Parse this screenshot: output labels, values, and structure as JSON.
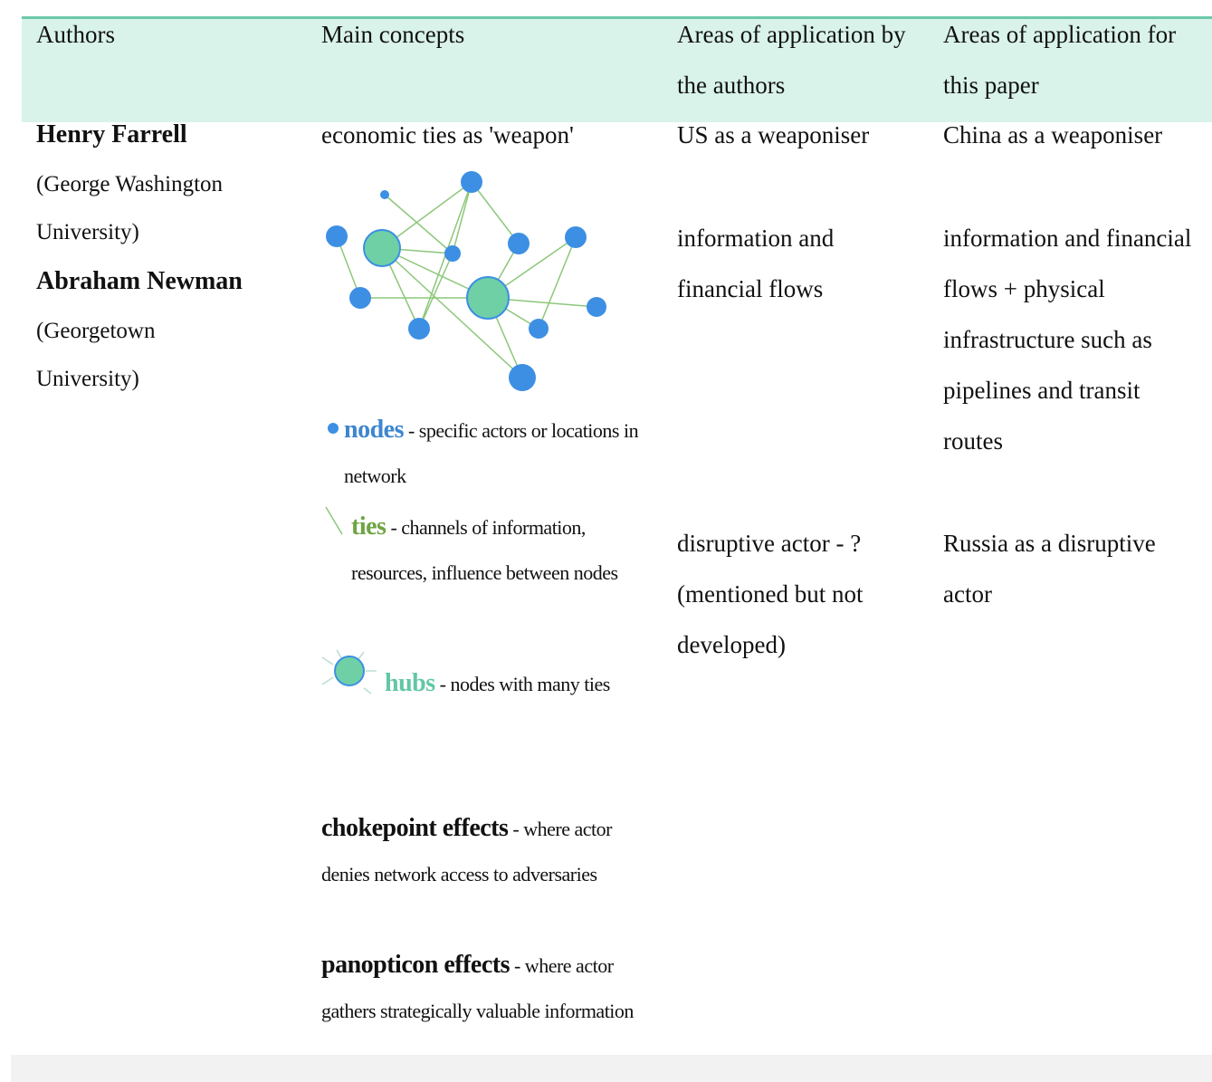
{
  "header": {
    "columns": [
      "Authors",
      "Main concepts",
      "Areas of application by the authors",
      "Areas of application for this paper"
    ]
  },
  "authors": [
    {
      "name": "Henry Farrell",
      "affiliation": "(George Washington University)"
    },
    {
      "name": "Abraham Newman",
      "affiliation": "(Georgetown University)"
    }
  ],
  "concepts": {
    "headline": "economic ties as 'weapon'",
    "legend": [
      {
        "term": "nodes",
        "description": "- specific actors or locations in network"
      },
      {
        "term": "ties",
        "description": "- channels of information, resources, influence between nodes"
      },
      {
        "term": "hubs",
        "description": "- nodes with many ties"
      }
    ],
    "effects": [
      {
        "term": "chokepoint effects",
        "description": "- where actor denies network access to adversaries"
      },
      {
        "term": "panopticon effects",
        "description": "- where actor gathers strategically valuable information"
      }
    ]
  },
  "by_authors": [
    "US as a weaponiser",
    "information and financial flows",
    "disruptive actor - ? (mentioned but not developed)"
  ],
  "this_paper": [
    "China as a weaponiser",
    "information and financial flows + physical infrastructure such as pipelines and transit routes",
    "Russia as a disruptive actor"
  ]
}
